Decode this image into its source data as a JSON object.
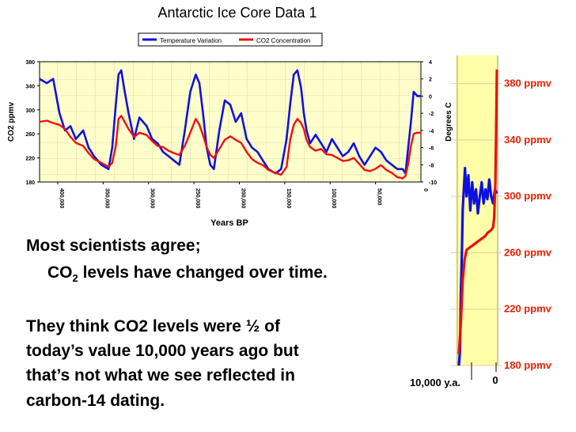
{
  "slide": {
    "text_line1": "Most scientists agree;",
    "text_line2_pre": "CO",
    "text_line2_sub": "2",
    "text_line2_post": " levels have changed over time.",
    "para_lines": [
      "They think CO2 levels were ½ of",
      "today’s value 10,000 years ago but",
      "that’s not what we see reflected in",
      "carbon-14 dating."
    ]
  },
  "colors": {
    "temperature": "#1010e0",
    "co2": "#f01010",
    "plot_bg": "#ffffcc",
    "ppmv_label": "#e82000"
  },
  "chart_data": [
    {
      "type": "line",
      "title": "Antarctic Ice Core Data 1",
      "xlabel": "Years BP",
      "ylabel": "CO2 ppmv",
      "y2label": "Degrees C",
      "xlim": [
        420000,
        0
      ],
      "ylim": [
        180,
        380
      ],
      "y2lim": [
        -10,
        4
      ],
      "x_ticks": [
        "400,000",
        "350,000",
        "300,000",
        "250,000",
        "200,000",
        "150,000",
        "100,000",
        "50,000"
      ],
      "x_tick_values": [
        400000,
        350000,
        300000,
        250000,
        200000,
        150000,
        100000,
        50000
      ],
      "y_ticks": [
        380,
        340,
        300,
        260,
        220,
        180
      ],
      "y_tick_labels": [
        "380",
        "340",
        "300",
        "260",
        "220",
        "180"
      ],
      "y2_ticks": [
        4,
        2,
        0,
        -2,
        -4,
        -6,
        -8,
        -10
      ],
      "y2_tick_labels": [
        "4",
        "2",
        "0",
        "-2",
        "-4",
        "-6",
        "-8",
        "-10"
      ],
      "x_end_label": "0",
      "legend": [
        "Temperature Variation",
        "CO2 Concentration"
      ],
      "series": [
        {
          "name": "Temperature Variation",
          "axis": "y2",
          "x": [
            420000,
            412000,
            405000,
            398000,
            392000,
            386000,
            380000,
            372000,
            366000,
            360000,
            352000,
            344000,
            340000,
            336000,
            333000,
            330000,
            327000,
            322000,
            316000,
            310000,
            302000,
            296000,
            290000,
            284000,
            278000,
            272000,
            266000,
            260000,
            254000,
            248000,
            244000,
            240000,
            236000,
            232000,
            228000,
            222000,
            216000,
            210000,
            204000,
            198000,
            192000,
            186000,
            180000,
            174000,
            168000,
            160000,
            154000,
            148000,
            144000,
            140000,
            136000,
            132000,
            129000,
            126000,
            122000,
            116000,
            110000,
            104000,
            98000,
            92000,
            86000,
            80000,
            74000,
            68000,
            62000,
            56000,
            50000,
            44000,
            38000,
            32000,
            26000,
            20000,
            17000,
            14000,
            11000,
            8000,
            4000,
            0
          ],
          "values": [
            2.0,
            1.5,
            2.0,
            -2.0,
            -4.0,
            -3.5,
            -5.0,
            -4.0,
            -6.0,
            -7.0,
            -8.0,
            -8.5,
            -6.0,
            -1.0,
            2.5,
            3.0,
            1.0,
            -2.0,
            -5.0,
            -2.5,
            -3.5,
            -5.0,
            -5.5,
            -6.5,
            -7.0,
            -7.5,
            -8.0,
            -4.0,
            0.5,
            2.5,
            1.5,
            -2.0,
            -6.0,
            -8.0,
            -8.5,
            -4.0,
            -0.5,
            -1.0,
            -3.0,
            -2.0,
            -5.0,
            -6.0,
            -6.5,
            -7.5,
            -8.5,
            -9.0,
            -8.5,
            -5.0,
            -1.0,
            2.5,
            3.0,
            1.0,
            -2.0,
            -4.0,
            -5.5,
            -4.5,
            -5.5,
            -6.5,
            -5.0,
            -6.0,
            -7.0,
            -6.5,
            -5.5,
            -7.0,
            -8.0,
            -7.0,
            -6.0,
            -6.5,
            -7.5,
            -8.0,
            -8.5,
            -8.5,
            -9.0,
            -6.0,
            -3.0,
            0.5,
            0.0,
            0.0
          ]
        },
        {
          "name": "CO2 Concentration",
          "axis": "y",
          "x": [
            420000,
            412000,
            405000,
            398000,
            392000,
            386000,
            380000,
            372000,
            366000,
            360000,
            352000,
            344000,
            340000,
            336000,
            333000,
            330000,
            327000,
            322000,
            316000,
            310000,
            302000,
            296000,
            290000,
            284000,
            278000,
            272000,
            266000,
            260000,
            254000,
            248000,
            244000,
            240000,
            236000,
            232000,
            228000,
            222000,
            216000,
            210000,
            204000,
            198000,
            192000,
            186000,
            180000,
            174000,
            168000,
            160000,
            154000,
            148000,
            144000,
            140000,
            136000,
            132000,
            129000,
            126000,
            122000,
            116000,
            110000,
            104000,
            98000,
            92000,
            86000,
            80000,
            74000,
            68000,
            62000,
            56000,
            50000,
            44000,
            38000,
            32000,
            26000,
            20000,
            17000,
            14000,
            11000,
            8000,
            4000,
            0
          ],
          "values": [
            280,
            282,
            278,
            275,
            268,
            255,
            245,
            240,
            228,
            218,
            212,
            205,
            212,
            240,
            285,
            290,
            282,
            268,
            255,
            262,
            258,
            248,
            240,
            238,
            232,
            228,
            225,
            240,
            262,
            285,
            275,
            258,
            238,
            225,
            220,
            235,
            250,
            256,
            250,
            245,
            230,
            218,
            212,
            208,
            200,
            195,
            192,
            205,
            250,
            275,
            285,
            278,
            268,
            250,
            238,
            232,
            235,
            226,
            225,
            220,
            215,
            216,
            220,
            210,
            200,
            198,
            202,
            208,
            200,
            195,
            188,
            186,
            190,
            210,
            240,
            260,
            262,
            262
          ]
        }
      ]
    },
    {
      "type": "line",
      "title": "",
      "xlabel": "",
      "ylabel": "",
      "ylim": [
        180,
        400
      ],
      "y_ticks": [
        380,
        340,
        300,
        260,
        220,
        180
      ],
      "y_tick_labels": [
        "380 ppmv",
        "340 ppmv",
        "300 ppmv",
        "260 ppmv",
        "220 ppmv",
        "180 ppmv"
      ],
      "x_labels": [
        "10,000 y.a.",
        "0"
      ],
      "series": [
        {
          "name": "Temperature Variation",
          "x": [
            0,
            0.03,
            0.05,
            0.08,
            0.1,
            0.13,
            0.16,
            0.2,
            0.25,
            0.3,
            0.35,
            0.4,
            0.45,
            0.5,
            0.55,
            0.6,
            0.65,
            0.7,
            0.75,
            0.8,
            0.85,
            0.9,
            0.95,
            1.0
          ],
          "values": [
            180,
            190,
            230,
            260,
            290,
            305,
            320,
            300,
            315,
            290,
            310,
            295,
            305,
            288,
            300,
            310,
            295,
            305,
            298,
            312,
            300,
            295,
            305,
            302
          ]
        },
        {
          "name": "CO2 Concentration",
          "x": [
            0,
            0.05,
            0.1,
            0.15,
            0.2,
            0.3,
            0.4,
            0.5,
            0.6,
            0.7,
            0.75,
            0.8,
            0.85,
            0.9,
            0.93,
            0.96,
            0.98,
            1.0
          ],
          "values": [
            188,
            210,
            240,
            255,
            262,
            264,
            266,
            268,
            270,
            272,
            274,
            275,
            276,
            278,
            285,
            310,
            345,
            390
          ]
        }
      ]
    }
  ]
}
